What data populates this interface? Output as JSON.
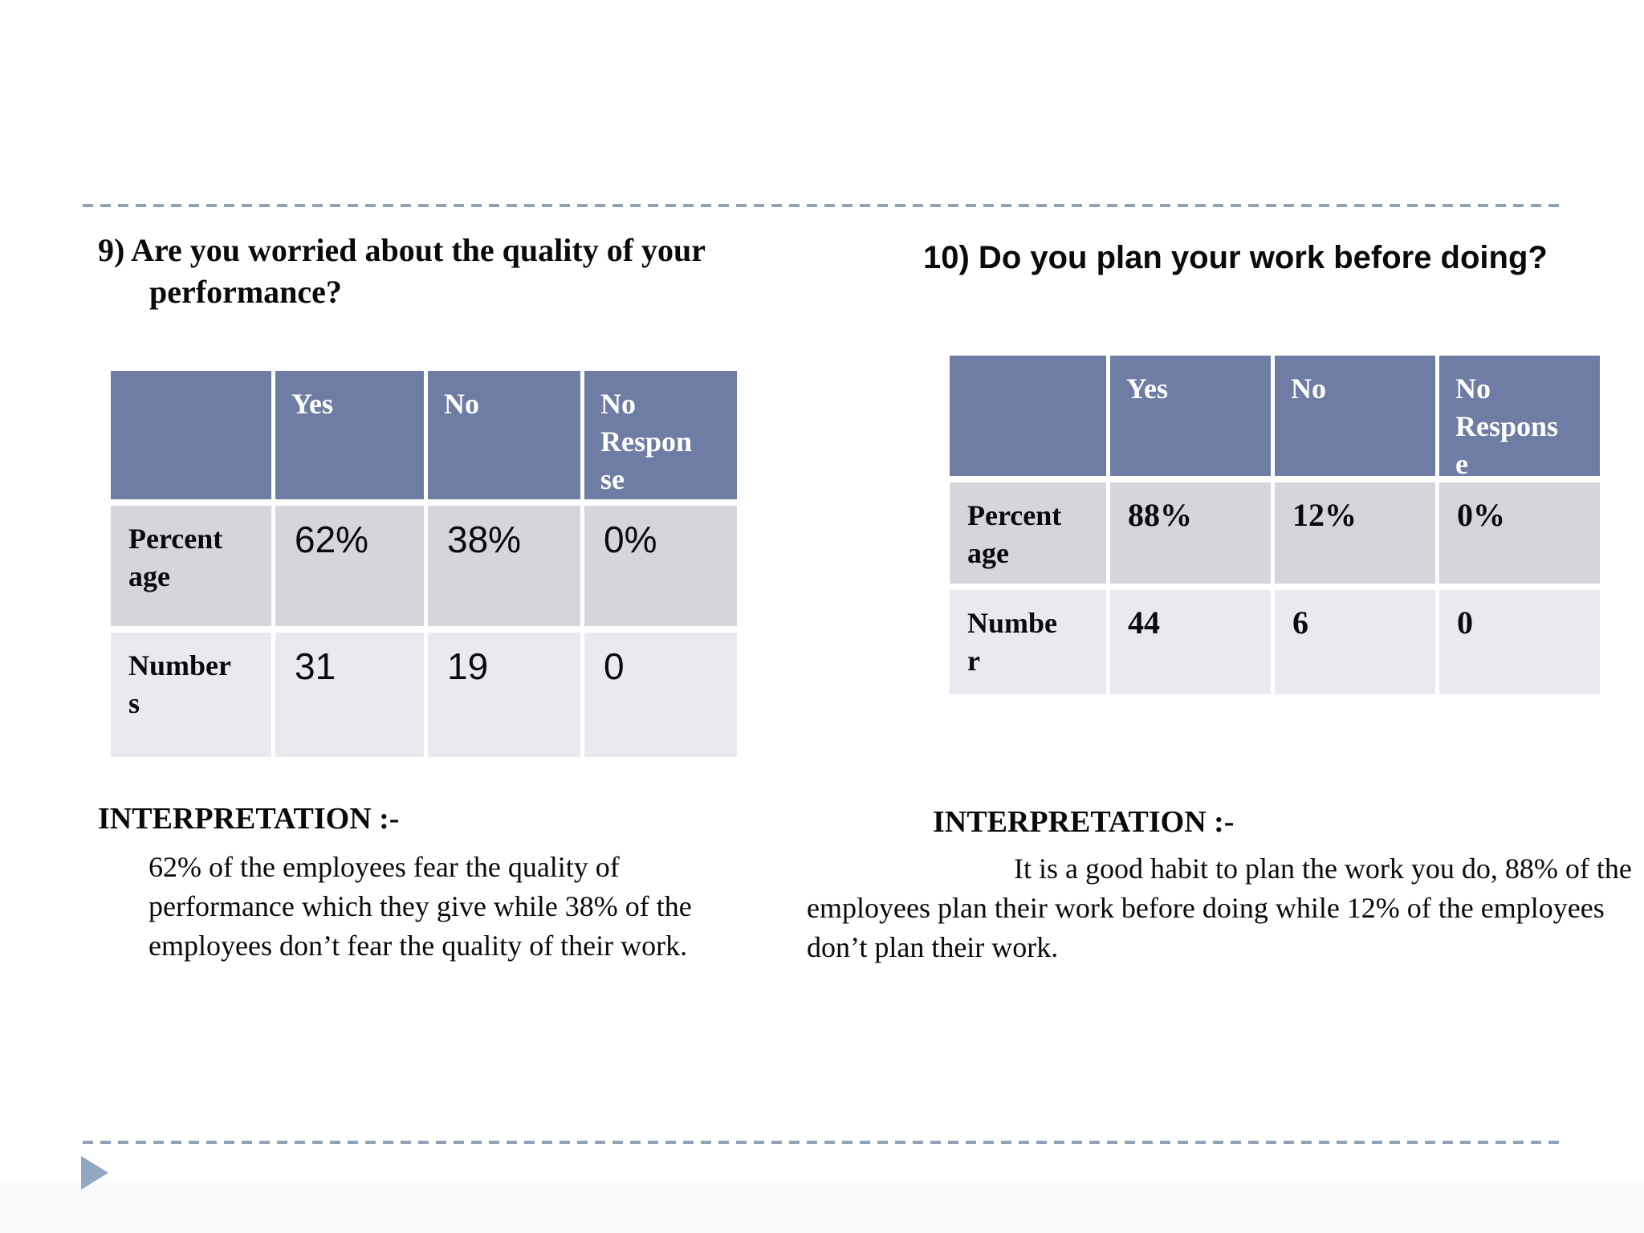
{
  "colors": {
    "table_header_bg": "#6f7da4",
    "table_row1_bg": "#d4d6db",
    "table_row2_bg": "#e9eaef",
    "divider_dash": "#8ea3b8",
    "triangle": "#92a7c2"
  },
  "left": {
    "title": "9) Are you worried about the quality of your performance?",
    "table": {
      "columns": [
        "",
        "Yes",
        "No",
        "No Response"
      ],
      "rows": [
        {
          "label": "Percentage",
          "values": [
            "62%",
            "38%",
            "0%"
          ]
        },
        {
          "label": "Numbers",
          "values": [
            "31",
            "19",
            "0"
          ]
        }
      ]
    },
    "interpretation_heading": "INTERPRETATION :-",
    "interpretation_body": "62% of the employees fear the quality of performance which they give while 38% of the employees don’t fear the quality of their work."
  },
  "right": {
    "title": "10) Do you plan your work before doing?",
    "table": {
      "columns": [
        "",
        "Yes",
        "No",
        "No Response"
      ],
      "rows": [
        {
          "label": "Percentage",
          "values": [
            "88%",
            "12%",
            "0%"
          ]
        },
        {
          "label": "Number",
          "values": [
            "44",
            "6",
            "0"
          ]
        }
      ]
    },
    "interpretation_heading": "INTERPRETATION :-",
    "interpretation_body": "It is a good habit to plan the work you do, 88% of the employees plan their work before doing while 12% of the employees don’t plan their work."
  },
  "footer": {
    "next_slide_icon": "right-triangle"
  }
}
